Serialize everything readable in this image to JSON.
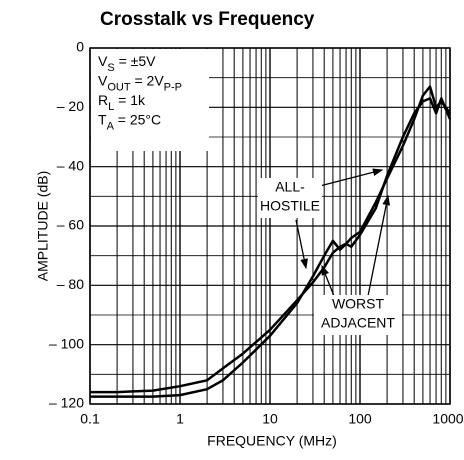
{
  "chart_data": {
    "type": "line",
    "title": "Crosstalk vs Frequency",
    "x_label": "FREQUENCY (MHz)",
    "y_label": "AMPLITUDE (dB)",
    "log_x": true,
    "grid": true,
    "xlim": [
      0.1,
      1000
    ],
    "xticks": [
      0.1,
      1,
      10,
      100,
      1000
    ],
    "ylim": [
      -120,
      0
    ],
    "yticks": [
      {
        "value": -120,
        "label": "– 120"
      },
      {
        "value": -100,
        "label": "– 100"
      },
      {
        "value": -80,
        "label": "– 80"
      },
      {
        "value": -60,
        "label": "– 60"
      },
      {
        "value": -40,
        "label": "– 40"
      },
      {
        "value": -20,
        "label": "– 20"
      },
      0
    ],
    "x": [
      0.1,
      0.2,
      0.5,
      1,
      2,
      3,
      5,
      10,
      20,
      30,
      40,
      50,
      60,
      70,
      80,
      100,
      150,
      200,
      300,
      400,
      500,
      600,
      700,
      800,
      1000
    ],
    "series": [
      {
        "color": "#000000",
        "values": [
          -116,
          -116,
          -115.5,
          -114,
          -112,
          -108,
          -103,
          -95,
          -85,
          -79,
          -74,
          -69,
          -67,
          -66,
          -64,
          -62,
          -52,
          -44,
          -33,
          -24,
          -16,
          -13,
          -20,
          -18,
          -22
        ]
      },
      {
        "color": "#000000",
        "values": [
          -117.5,
          -117.5,
          -117.5,
          -117,
          -115,
          -112,
          -106,
          -97,
          -86,
          -77,
          -70,
          -65,
          -68,
          -66,
          -67,
          -63,
          -54,
          -43,
          -30,
          -22,
          -18,
          -17,
          -22,
          -17,
          -24
        ]
      }
    ],
    "conditions": [
      [
        "V",
        "S",
        " = ±5V"
      ],
      [
        "V",
        "OUT",
        " = 2V",
        "P-P"
      ],
      [
        "R",
        "L",
        " = 1k"
      ],
      [
        "T",
        "A",
        " = 25°C"
      ]
    ],
    "annotations": [
      {
        "lines": [
          "ALL-",
          "HOSTILE"
        ]
      },
      {
        "lines": [
          "WORST",
          "ADJACENT"
        ]
      }
    ]
  }
}
